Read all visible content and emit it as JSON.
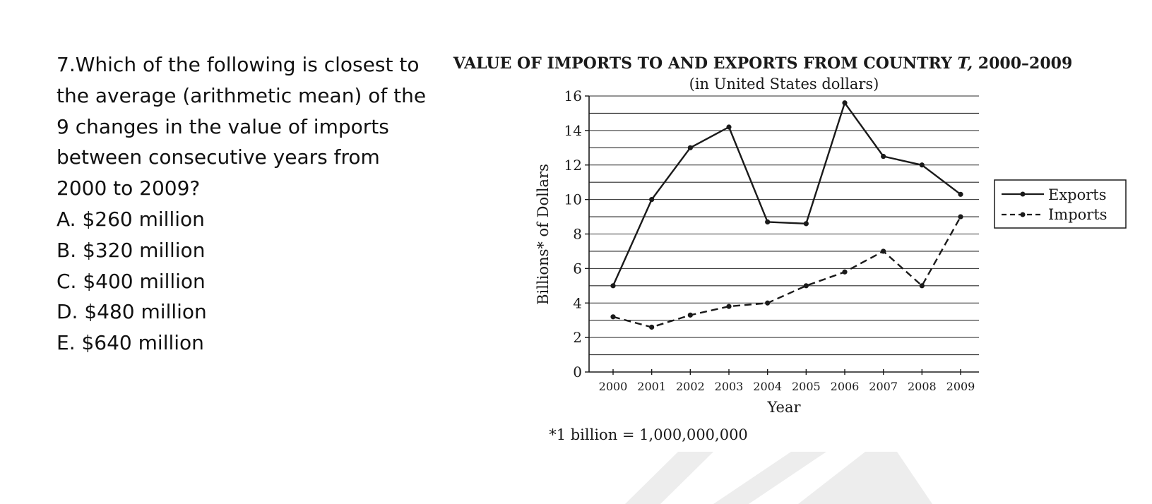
{
  "question": {
    "stem_lines": [
      "7.Which of the following is closest to",
      "the average (arithmetic mean) of the",
      "9 changes in the value of imports",
      "between consecutive years from",
      "2000 to 2009?"
    ],
    "choices": [
      "A. $260 million",
      "B. $320 million",
      "C. $400 million",
      "D. $480 million",
      "E. $640 million"
    ]
  },
  "chart_data": {
    "type": "line",
    "title": "VALUE OF IMPORTS TO AND EXPORTS FROM COUNTRY T, 2000–2009",
    "title_main": "VALUE OF IMPORTS TO AND EXPORTS FROM COUNTRY ",
    "title_var": "T,",
    "title_years": " 2000–2009",
    "subtitle": "(in United States dollars)",
    "xlabel": "Year",
    "ylabel": "Billions* of Dollars",
    "footnote": "*1 billion = 1,000,000,000",
    "x": [
      "2000",
      "2001",
      "2002",
      "2003",
      "2004",
      "2005",
      "2006",
      "2007",
      "2008",
      "2009"
    ],
    "ylim": [
      0,
      16
    ],
    "y_ticks": [
      "0",
      "2",
      "4",
      "6",
      "8",
      "10",
      "12",
      "14",
      "16"
    ],
    "grid": true,
    "gridline_step": 1,
    "legend_position": "right",
    "series": [
      {
        "name": "Exports",
        "style": "solid",
        "values": [
          5,
          10,
          13,
          14.2,
          8.7,
          8.6,
          15.6,
          12.5,
          12,
          10.3
        ]
      },
      {
        "name": "Imports",
        "style": "dashed",
        "values": [
          3.2,
          2.6,
          3.3,
          3.8,
          4,
          5,
          5.8,
          7,
          5,
          9
        ]
      }
    ],
    "colors": {
      "line": "#1a1a1a",
      "grid": "#2a2a2a",
      "watermark": "#ededed"
    }
  }
}
